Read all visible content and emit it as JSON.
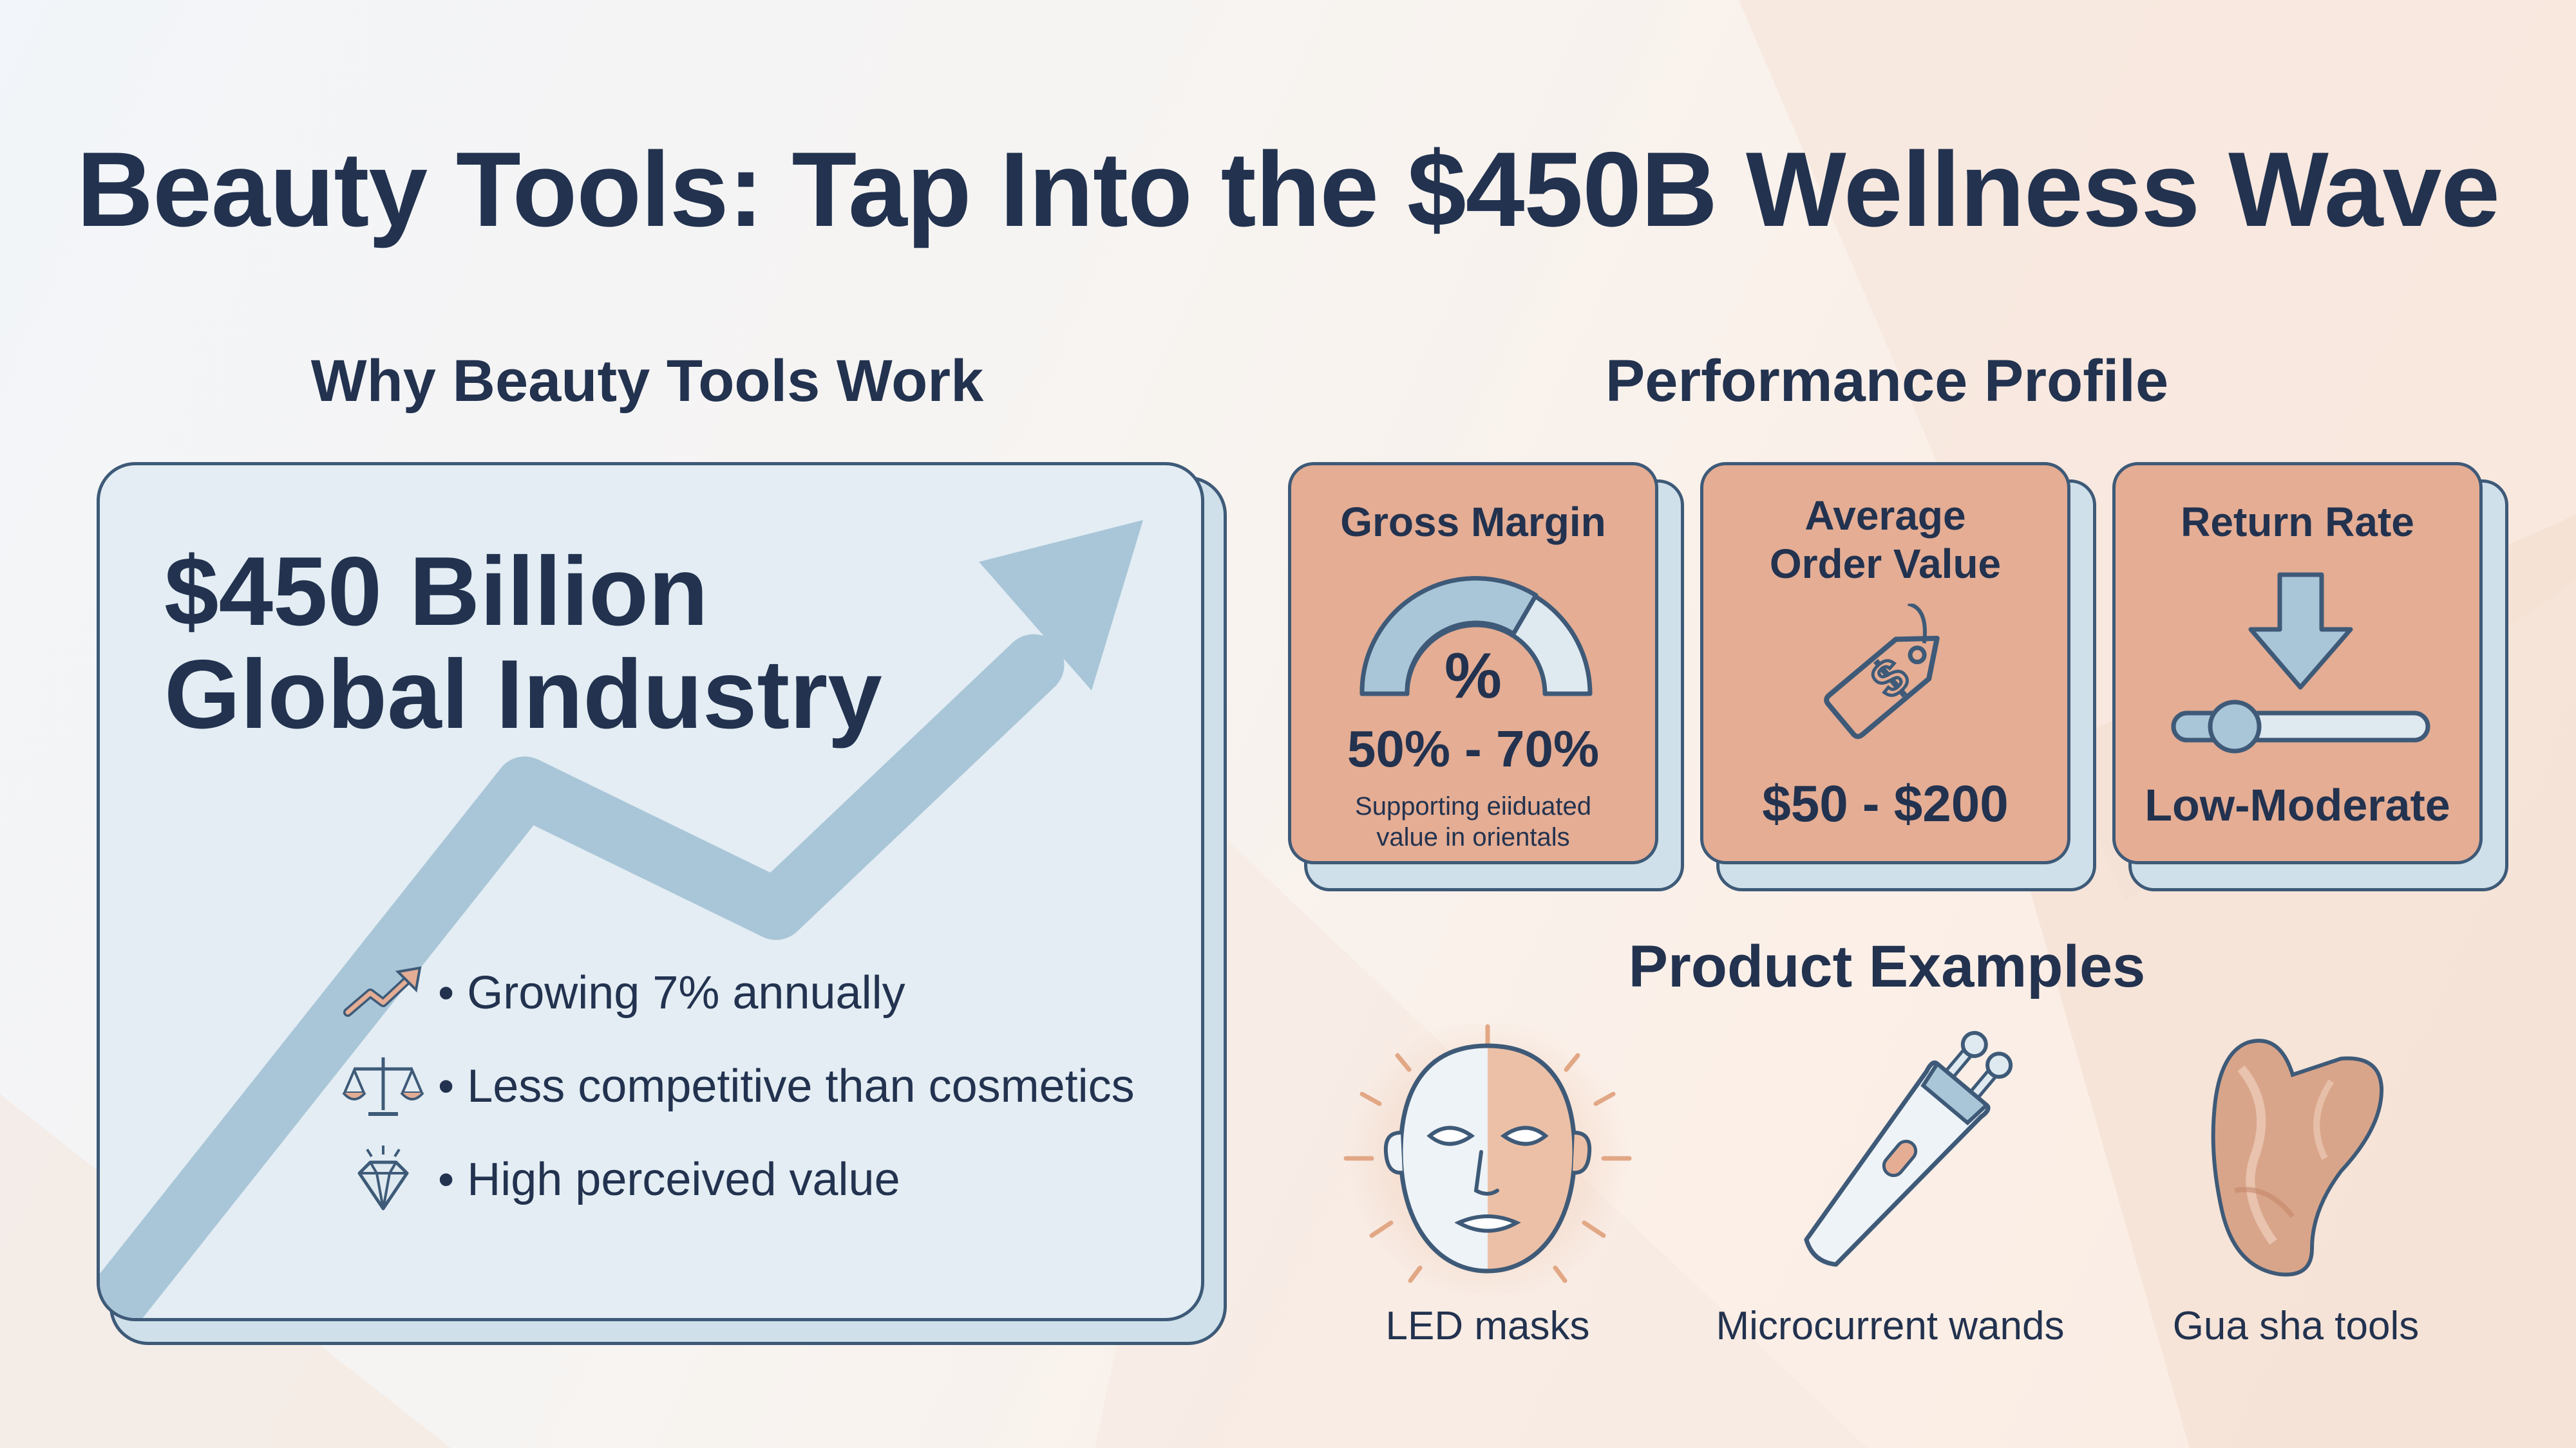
{
  "title": "Beauty Tools: Tap Into the $450B Wellness Wave",
  "left": {
    "heading": "Why Beauty Tools Work",
    "headline_line1": "$450 Billion",
    "headline_line2": "Global Industry",
    "bullets": [
      {
        "icon": "trend-up-icon",
        "text": "• Growing 7% annually"
      },
      {
        "icon": "scale-icon",
        "text": "• Less competitive than cosmetics"
      },
      {
        "icon": "diamond-icon",
        "text": "• High perceived value"
      }
    ]
  },
  "performance": {
    "heading": "Performance Profile",
    "cards": [
      {
        "title": "Gross Margin",
        "icon_label": "%",
        "value": "50% - 70%",
        "caption_line1": "Supporting eiiduated",
        "caption_line2": "value in orientals",
        "icon": "gauge-icon"
      },
      {
        "title_line1": "Average",
        "title_line2": "Order Value",
        "value": "$50 - $200",
        "icon": "price-tag-icon"
      },
      {
        "title": "Return Rate",
        "value": "Low-Moderate",
        "icon": "down-arrow-slider-icon"
      }
    ]
  },
  "products": {
    "heading": "Product Examples",
    "items": [
      {
        "label": "LED masks",
        "icon": "led-mask-icon"
      },
      {
        "label": "Microcurrent wands",
        "icon": "microcurrent-wand-icon"
      },
      {
        "label": "Gua sha tools",
        "icon": "gua-sha-icon"
      }
    ]
  },
  "colors": {
    "navy": "#22324f",
    "panel_blue": "#e3edf3",
    "arrow_blue": "#a9c6d8",
    "card_peach": "#e4ad94",
    "background": "#f7f4f1"
  }
}
